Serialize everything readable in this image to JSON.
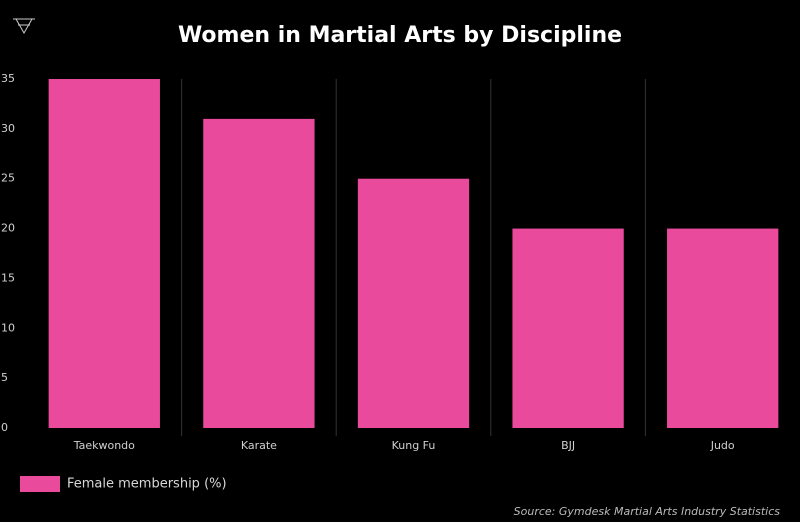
{
  "chart_data": {
    "type": "bar",
    "title": "Women in Martial Arts by Discipline",
    "categories": [
      "Taekwondo",
      "Karate",
      "Kung Fu",
      "BJJ",
      "Judo"
    ],
    "series": [
      {
        "name": "Female membership (%)",
        "color": "#ea4a9c",
        "values": [
          35,
          31,
          25,
          20,
          20
        ]
      }
    ],
    "ylim": [
      0,
      35
    ],
    "yticks": [
      0,
      5,
      10,
      15,
      20,
      25,
      30,
      35
    ],
    "legend": "bottom-left",
    "source": "Source: Gymdesk Martial Arts Industry Statistics"
  }
}
